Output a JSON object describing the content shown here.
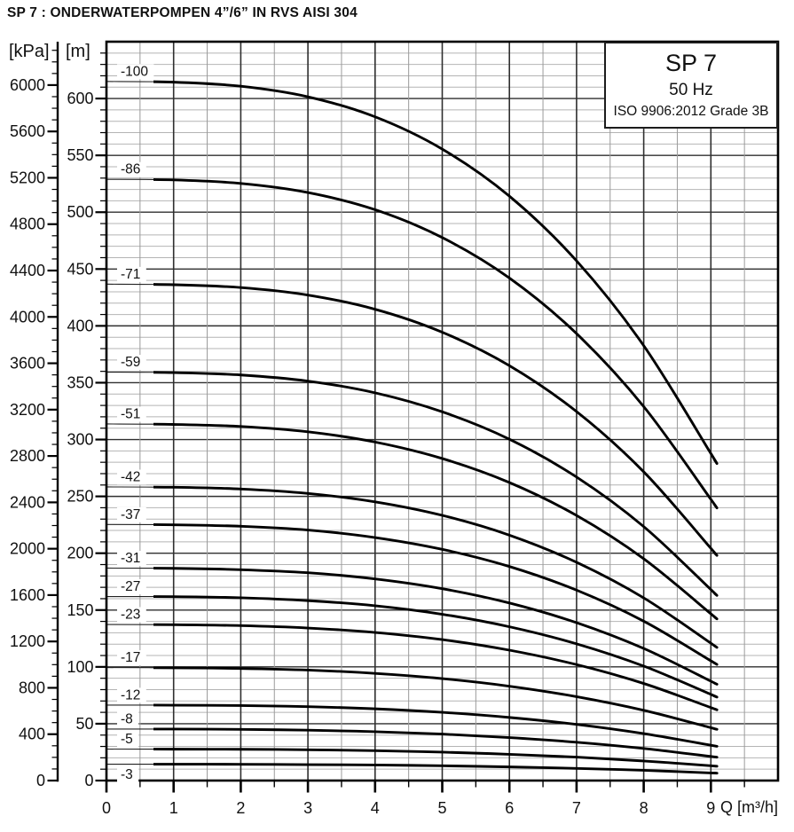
{
  "title": "SP 7 : ONDERWATERPOMPEN 4”/6” IN RVS AISI 304",
  "legend": {
    "model": "SP 7",
    "frequency": "50 Hz",
    "standard": "ISO 9906:2012 Grade 3B"
  },
  "colors": {
    "curve": "#000000",
    "grid_minor_h": "#b4b4b4",
    "grid_minor_v": "#9a9a9a",
    "grid_major": "#2f2f2f",
    "axis": "#000000",
    "text": "#111111",
    "background": "#ffffff",
    "legend_border": "#1c1c1c"
  },
  "chart_data": {
    "type": "line",
    "title": "SP 7 50 Hz submersible pump performance curves (head vs flow)",
    "legend_position": "top-right",
    "grid": true,
    "x_axis": {
      "unit": "Q [m³/h]",
      "min": 0,
      "max": 10,
      "major_tick": 1,
      "minor_tick": 0.5,
      "tick_labels": [
        "0",
        "1",
        "2",
        "3",
        "4",
        "5",
        "6",
        "7",
        "8",
        "9"
      ]
    },
    "y_axis_m": {
      "unit": "[m]",
      "min": 0,
      "max": 650,
      "major_tick": 50,
      "minor_tick": 10,
      "tick_labels": [
        "0",
        "50",
        "100",
        "150",
        "200",
        "250",
        "300",
        "350",
        "400",
        "450",
        "500",
        "550",
        "600"
      ]
    },
    "y_axis_kpa": {
      "unit": "[kPa]",
      "min": 0,
      "max": 6300,
      "major_tick": 400,
      "minor_tick": 100,
      "tick_labels": [
        "0",
        "400",
        "800",
        "1200",
        "1600",
        "2000",
        "2400",
        "2800",
        "3200",
        "3600",
        "4000",
        "4400",
        "4800",
        "5200",
        "5600",
        "6000"
      ]
    },
    "kpa_per_m": 9.80665,
    "duty_range_start_q": 0.7,
    "q_values": [
      0,
      1,
      2,
      3,
      4,
      5,
      6,
      7,
      8,
      9,
      9.05
    ],
    "series": [
      {
        "label": "-100",
        "heads_m": [
          615.0,
          614.4,
          610.8,
          601.5,
          583.9,
          555.5,
          514.1,
          457.2,
          382.6,
          287.7,
          282.4
        ]
      },
      {
        "label": "-86",
        "heads_m": [
          528.9,
          528.4,
          525.3,
          517.3,
          502.2,
          477.7,
          442.1,
          393.2,
          329.0,
          247.4,
          242.9
        ]
      },
      {
        "label": "-71",
        "heads_m": [
          436.7,
          436.2,
          433.7,
          427.1,
          414.6,
          394.4,
          365.0,
          324.6,
          271.6,
          204.3,
          200.5
        ]
      },
      {
        "label": "-59",
        "heads_m": [
          359.3,
          358.9,
          356.8,
          351.4,
          341.1,
          324.4,
          300.3,
          267.0,
          223.4,
          168.0,
          164.9
        ]
      },
      {
        "label": "-51",
        "heads_m": [
          313.7,
          313.3,
          311.5,
          306.8,
          297.8,
          283.3,
          262.2,
          233.2,
          195.1,
          146.7,
          144.0
        ]
      },
      {
        "label": "-42",
        "heads_m": [
          258.3,
          258.0,
          256.5,
          252.6,
          245.2,
          233.3,
          215.9,
          192.0,
          160.7,
          120.8,
          118.6
        ]
      },
      {
        "label": "-37",
        "heads_m": [
          225.3,
          225.0,
          223.7,
          220.4,
          213.8,
          203.4,
          188.3,
          167.5,
          140.2,
          105.3,
          103.5
        ]
      },
      {
        "label": "-31",
        "heads_m": [
          186.9,
          186.7,
          185.5,
          182.8,
          177.4,
          168.8,
          156.2,
          138.9,
          116.2,
          87.4,
          85.8
        ]
      },
      {
        "label": "-27",
        "heads_m": [
          161.9,
          161.8,
          160.8,
          158.3,
          153.8,
          146.3,
          135.3,
          120.3,
          100.7,
          75.8,
          74.3
        ]
      },
      {
        "label": "-23",
        "heads_m": [
          137.3,
          137.1,
          136.3,
          134.2,
          130.3,
          124.0,
          114.7,
          102.0,
          85.4,
          64.2,
          63.1
        ]
      },
      {
        "label": "-17",
        "heads_m": [
          99.4,
          99.2,
          98.6,
          97.2,
          94.3,
          89.7,
          83.0,
          73.8,
          61.8,
          46.5,
          45.6
        ]
      },
      {
        "label": "-12",
        "heads_m": [
          66.4,
          66.3,
          66.0,
          65.0,
          63.1,
          60.0,
          55.5,
          49.4,
          41.3,
          31.1,
          30.5
        ]
      },
      {
        "label": "-8",
        "heads_m": [
          45.3,
          45.3,
          45.0,
          44.3,
          43.0,
          40.9,
          37.8,
          33.7,
          28.2,
          21.2,
          20.8
        ]
      },
      {
        "label": "-5",
        "heads_m": [
          27.7,
          27.6,
          27.5,
          27.1,
          26.3,
          25.0,
          23.1,
          20.6,
          17.2,
          13.0,
          12.7
        ]
      },
      {
        "label": "-3",
        "heads_m": [
          14.4,
          14.4,
          14.3,
          14.0,
          13.7,
          13.0,
          12.0,
          10.7,
          9.0,
          6.7,
          6.6
        ]
      }
    ]
  }
}
